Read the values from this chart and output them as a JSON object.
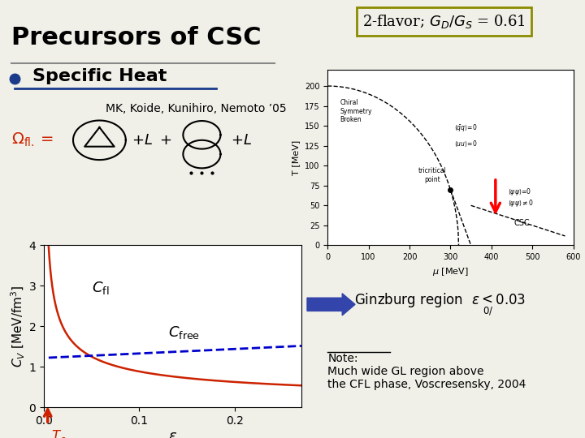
{
  "title": "Precursors of CSC",
  "flavor_label": "2-flavor; $G_D/G_S$ = 0.61",
  "subtitle_bullet": "Specific Heat",
  "citation": "MK, Koide, Kunihiro, Nemoto ’05",
  "plot_xlabel": "$\\varepsilon$",
  "plot_ylabel": "$C_V$ [MeV/fm$^3$]",
  "plot_xlim": [
    0.0,
    0.27
  ],
  "plot_ylim": [
    0.0,
    4.0
  ],
  "plot_yticks": [
    0,
    1,
    2,
    3,
    4
  ],
  "plot_xticks": [
    0.0,
    0.1,
    0.2
  ],
  "C_fl_label": "$C_{\\mathrm{fl}}$",
  "C_free_label": "$C_{\\mathrm{free}}$",
  "C_fl_color": "#cc2200",
  "C_free_color": "#0000cc",
  "bg_color": "#f0f0e8",
  "Tc_color": "#cc2200",
  "flavor_box_color": "#8b8b00",
  "ginzburg_arrow_color": "#3344aa"
}
